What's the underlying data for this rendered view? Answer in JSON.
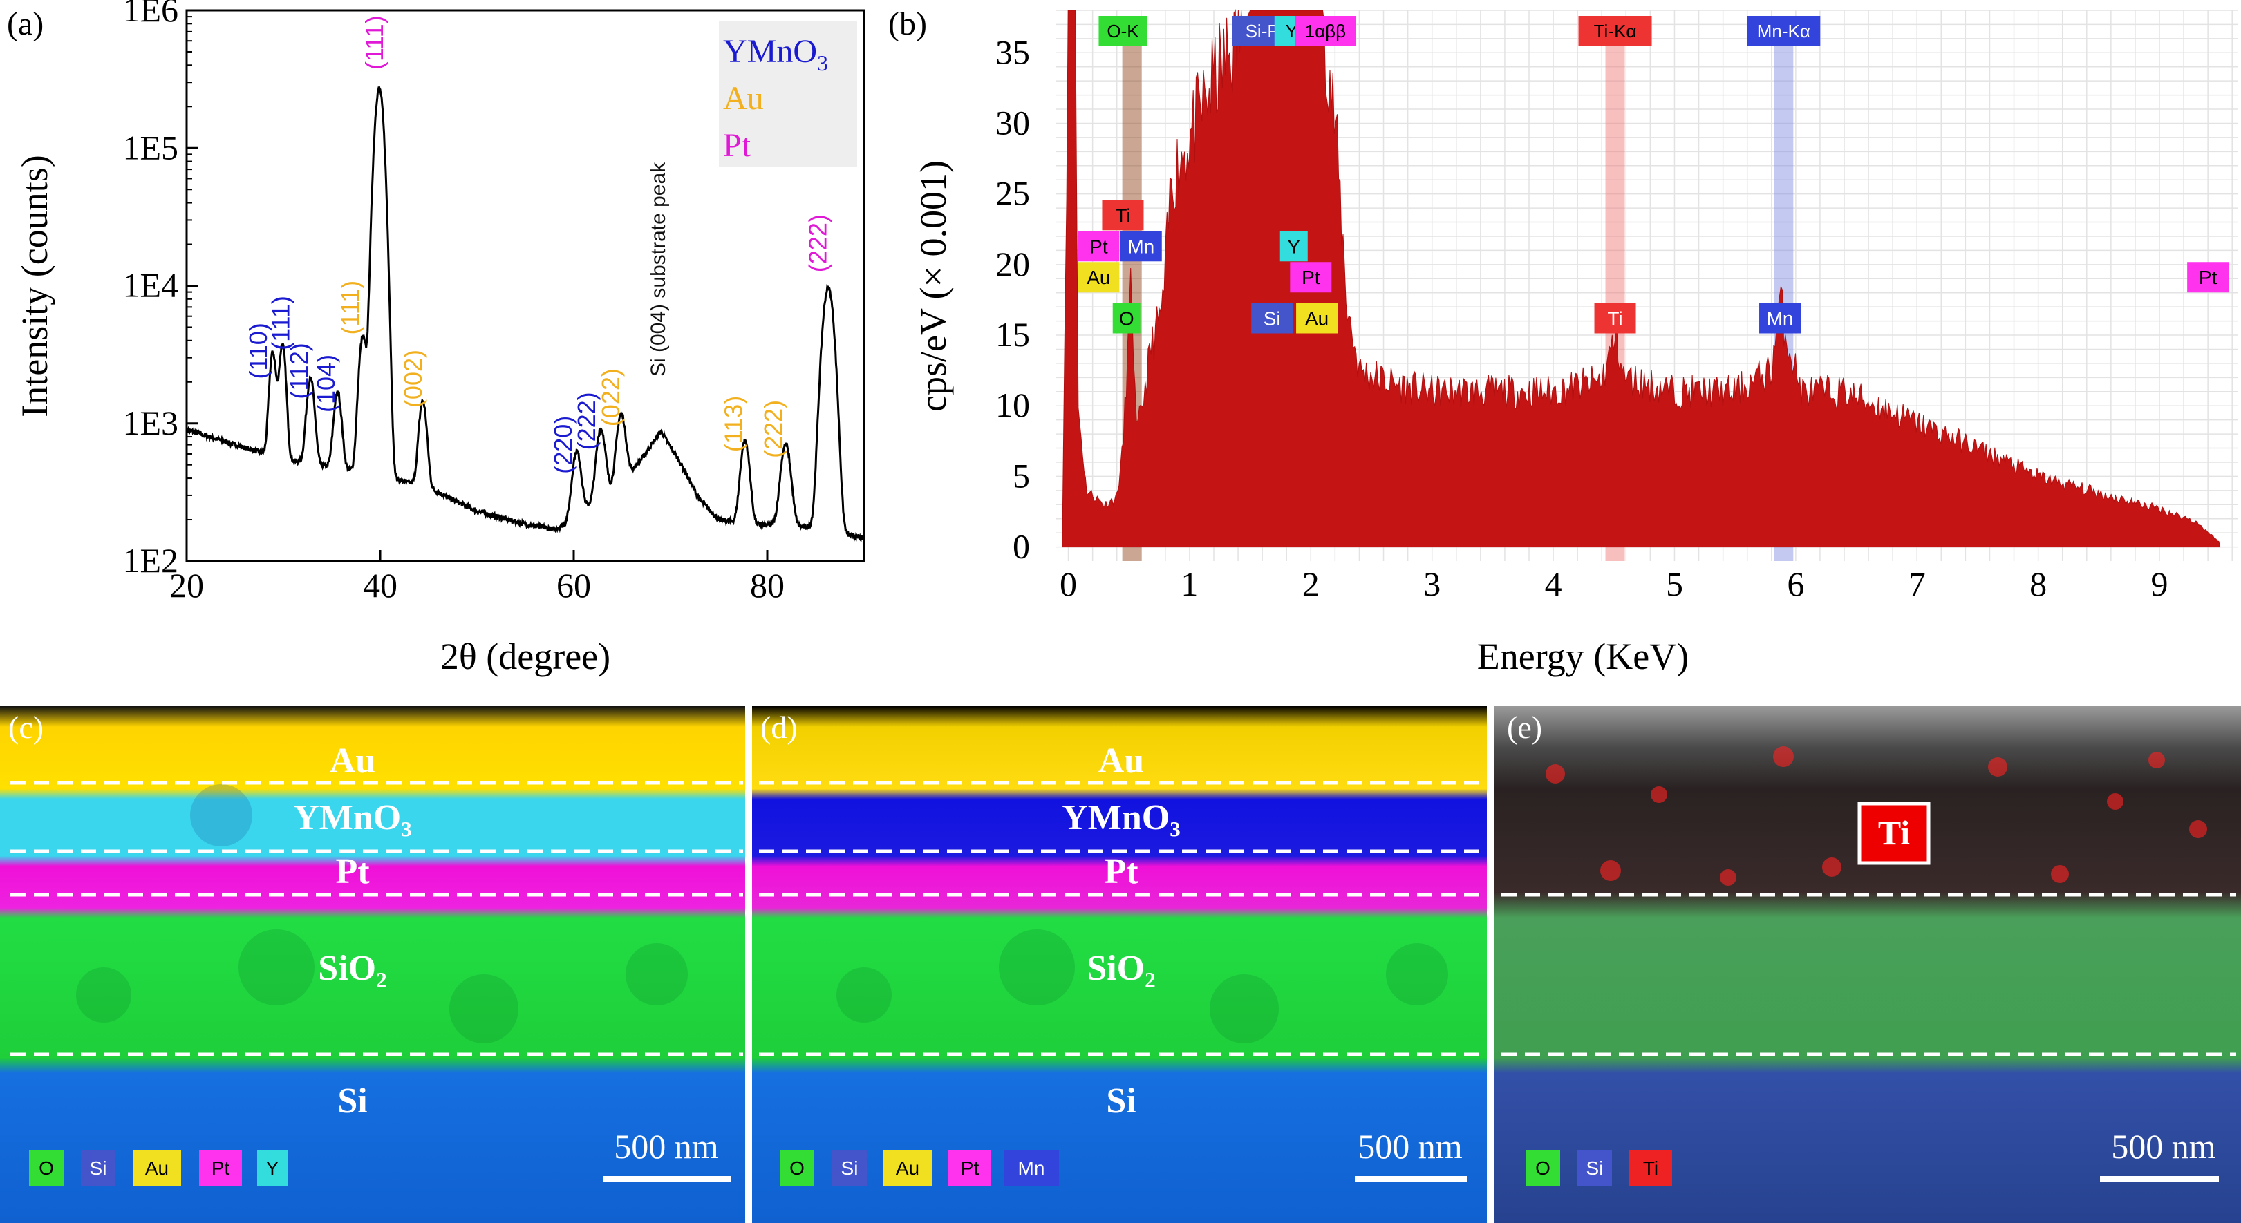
{
  "colors": {
    "blue": "#1a1ad0",
    "gold": "#f2b01e",
    "magenta": "#e019d6",
    "red": "#c01414",
    "eds_label_O": "#33dd33",
    "eds_label_Si": "#4455cc",
    "eds_label_Au": "#f0e020",
    "eds_label_Pt": "#ff33ee",
    "eds_label_Y": "#33dddd",
    "eds_label_Mn": "#3344dd",
    "eds_label_Ti": "#ee3333"
  },
  "panels": {
    "a": "(a)",
    "b": "(b)",
    "c": "(c)",
    "d": "(d)",
    "e": "(e)"
  },
  "chart_data": [
    {
      "id": "xrd",
      "type": "line",
      "xlabel": "2θ (degree)",
      "ylabel": "Intensity (counts)",
      "xlim": [
        20,
        90
      ],
      "xticks": [
        20,
        40,
        60,
        80
      ],
      "yscale": "log",
      "ylim": [
        100,
        1000000
      ],
      "yticks": [
        {
          "value": 100,
          "label": "1E2"
        },
        {
          "value": 1000,
          "label": "1E3"
        },
        {
          "value": 10000,
          "label": "1E4"
        },
        {
          "value": 100000,
          "label": "1E5"
        },
        {
          "value": 1000000,
          "label": "1E6"
        }
      ],
      "legend": [
        {
          "label": "YMnO",
          "sub": "3",
          "color": "#1a1ad0"
        },
        {
          "label": "Au",
          "sub": "",
          "color": "#f2b01e"
        },
        {
          "label": "Pt",
          "sub": "",
          "color": "#e019d6"
        }
      ],
      "annotation": "Si (004) substrate peak",
      "baseline": [
        [
          20,
          900
        ],
        [
          25,
          700
        ],
        [
          30,
          550
        ],
        [
          35,
          480
        ],
        [
          40,
          420
        ],
        [
          45,
          340
        ],
        [
          50,
          230
        ],
        [
          55,
          185
        ],
        [
          58,
          170
        ],
        [
          60,
          200
        ],
        [
          62,
          270
        ],
        [
          65,
          380
        ],
        [
          67,
          550
        ],
        [
          69,
          880
        ],
        [
          71,
          520
        ],
        [
          73,
          280
        ],
        [
          75,
          200
        ],
        [
          78,
          185
        ],
        [
          82,
          180
        ],
        [
          85,
          175
        ],
        [
          90,
          145
        ]
      ],
      "peaks": [
        {
          "x": 28.9,
          "y": 2700,
          "w": 0.3
        },
        {
          "x": 29.9,
          "y": 3200,
          "w": 0.3
        },
        {
          "x": 32.8,
          "y": 1600,
          "w": 0.35
        },
        {
          "x": 35.6,
          "y": 1200,
          "w": 0.35
        },
        {
          "x": 38.2,
          "y": 3800,
          "w": 0.35
        },
        {
          "x": 39.9,
          "y": 270000,
          "w": 0.4
        },
        {
          "x": 44.4,
          "y": 1100,
          "w": 0.35
        },
        {
          "x": 60.3,
          "y": 420,
          "w": 0.4
        },
        {
          "x": 62.8,
          "y": 620,
          "w": 0.4
        },
        {
          "x": 64.9,
          "y": 800,
          "w": 0.4
        },
        {
          "x": 77.7,
          "y": 560,
          "w": 0.4
        },
        {
          "x": 81.9,
          "y": 520,
          "w": 0.45
        },
        {
          "x": 86.3,
          "y": 9500,
          "w": 0.5
        }
      ],
      "peak_labels": [
        {
          "text": "(110)",
          "x": 28.3,
          "y": 2100,
          "color": "#1a1ad0"
        },
        {
          "text": "(111)",
          "x": 30.6,
          "y": 3400,
          "color": "#1a1ad0"
        },
        {
          "text": "(112)",
          "x": 32.5,
          "y": 1500,
          "color": "#1a1ad0"
        },
        {
          "text": "(104)",
          "x": 35.3,
          "y": 1200,
          "color": "#1a1ad0"
        },
        {
          "text": "(111)",
          "x": 37.8,
          "y": 4400,
          "color": "#f2b01e"
        },
        {
          "text": "(111)",
          "x": 40.3,
          "y": 370000,
          "color": "#e019d6"
        },
        {
          "text": "(002)",
          "x": 44.3,
          "y": 1300,
          "color": "#f2b01e"
        },
        {
          "text": "(220)",
          "x": 59.8,
          "y": 430,
          "color": "#1a1ad0"
        },
        {
          "text": "(222)",
          "x": 62.2,
          "y": 640,
          "color": "#1a1ad0"
        },
        {
          "text": "(022)",
          "x": 64.7,
          "y": 950,
          "color": "#f2b01e"
        },
        {
          "text": "(113)",
          "x": 77.4,
          "y": 620,
          "color": "#f2b01e"
        },
        {
          "text": "(222)",
          "x": 81.5,
          "y": 560,
          "color": "#f2b01e"
        },
        {
          "text": "(222)",
          "x": 86.1,
          "y": 12500,
          "color": "#e019d6"
        }
      ]
    },
    {
      "id": "eds",
      "type": "bar",
      "xlabel": "Energy (KeV)",
      "ylabel": "cps/eV (× 0.001)",
      "xlim": [
        -0.1,
        9.65
      ],
      "ylim": [
        -1,
        38
      ],
      "xticks": [
        0,
        1,
        2,
        3,
        4,
        5,
        6,
        7,
        8,
        9
      ],
      "yticks": [
        0,
        5,
        10,
        15,
        20,
        25,
        30,
        35
      ],
      "grid": true,
      "spectrum": [
        [
          -0.05,
          0
        ],
        [
          0,
          38
        ],
        [
          0.06,
          38
        ],
        [
          0.08,
          10
        ],
        [
          0.15,
          4
        ],
        [
          0.3,
          3
        ],
        [
          0.4,
          3.5
        ],
        [
          0.45,
          7
        ],
        [
          0.52,
          19
        ],
        [
          0.56,
          8
        ],
        [
          0.6,
          9.5
        ],
        [
          0.68,
          14
        ],
        [
          0.78,
          17
        ],
        [
          0.85,
          26
        ],
        [
          0.95,
          28
        ],
        [
          1.05,
          30
        ],
        [
          1.2,
          33
        ],
        [
          1.4,
          36
        ],
        [
          1.5,
          38
        ],
        [
          2.1,
          38
        ],
        [
          2.2,
          30
        ],
        [
          2.3,
          17
        ],
        [
          2.4,
          12.5
        ],
        [
          2.7,
          11.5
        ],
        [
          3,
          11
        ],
        [
          3.5,
          11
        ],
        [
          4,
          11
        ],
        [
          4.4,
          11.8
        ],
        [
          4.48,
          14
        ],
        [
          4.52,
          15
        ],
        [
          4.58,
          12
        ],
        [
          5,
          11
        ],
        [
          5.5,
          11
        ],
        [
          5.8,
          12.5
        ],
        [
          5.87,
          17.5
        ],
        [
          5.92,
          15
        ],
        [
          6.05,
          11
        ],
        [
          6.4,
          11
        ],
        [
          7,
          8.8
        ],
        [
          7.5,
          7
        ],
        [
          8,
          5
        ],
        [
          8.5,
          3.8
        ],
        [
          9,
          2.7
        ],
        [
          9.3,
          1.8
        ],
        [
          9.5,
          0.3
        ]
      ],
      "lines": [
        {
          "x": 0.525,
          "color": "#8a3a10",
          "label": "O-K"
        },
        {
          "x": 4.51,
          "color": "#f07070",
          "label": "Ti-Kα"
        },
        {
          "x": 5.9,
          "color": "#7a88e0",
          "label": "Mn-Kα"
        }
      ],
      "peak_markers": [
        {
          "text": "Ti",
          "x": 0.45,
          "row": 0,
          "color": "#ee3333",
          "fg": "#000000"
        },
        {
          "text": "Pt",
          "x": 0.25,
          "row": 1,
          "color": "#ff33ee",
          "fg": "#000000"
        },
        {
          "text": "Mn",
          "x": 0.6,
          "row": 1,
          "color": "#3344dd",
          "fg": "#ffffff"
        },
        {
          "text": "Au",
          "x": 0.25,
          "row": 2,
          "color": "#f0e020",
          "fg": "#000000"
        },
        {
          "text": "O",
          "x": 0.48,
          "row": 3,
          "color": "#33dd33",
          "fg": "#000000"
        },
        {
          "text": "Y",
          "x": 1.86,
          "row": 1,
          "color": "#33dddd",
          "fg": "#000000"
        },
        {
          "text": "Pt",
          "x": 2.0,
          "row": 2,
          "color": "#ff33ee",
          "fg": "#000000"
        },
        {
          "text": "Si",
          "x": 1.68,
          "row": 3,
          "color": "#4455cc",
          "fg": "#ffffff"
        },
        {
          "text": "Au",
          "x": 2.05,
          "row": 3,
          "color": "#f0e020",
          "fg": "#000000"
        },
        {
          "text": "Ti",
          "x": 4.51,
          "row": 3,
          "color": "#ee3333",
          "fg": "#ffffff"
        },
        {
          "text": "Mn",
          "x": 5.87,
          "row": 3,
          "color": "#3344dd",
          "fg": "#ffffff"
        },
        {
          "text": "Pt",
          "x": 9.4,
          "row": 2,
          "color": "#ff33ee",
          "fg": "#000000"
        }
      ],
      "top_tags": [
        {
          "text": "O-K",
          "x": 0.45,
          "color": "#33dd33",
          "fg": "#000000"
        },
        {
          "text": "Si-P",
          "x": 1.6,
          "color": "#4455cc",
          "fg": "#ffffff"
        },
        {
          "text": "Y-L",
          "x": 1.9,
          "color": "#33dddd",
          "fg": "#000000"
        },
        {
          "text": "1αββ",
          "x": 2.12,
          "color": "#ff33ee",
          "fg": "#000000"
        },
        {
          "text": "Ti-Kα",
          "x": 4.51,
          "color": "#ee3333",
          "fg": "#000000"
        },
        {
          "text": "Mn-Kα",
          "x": 5.9,
          "color": "#3344dd",
          "fg": "#ffffff"
        }
      ]
    }
  ],
  "maps": [
    {
      "id": "c",
      "layers": [
        "Au",
        "YMnO₃",
        "Pt",
        "SiO₂",
        "Si"
      ],
      "scale": "500 nm",
      "legend": [
        "O",
        "Si",
        "Au",
        "Pt",
        "Y"
      ]
    },
    {
      "id": "d",
      "layers": [
        "Au",
        "YMnO₃",
        "Pt",
        "SiO₂",
        "Si"
      ],
      "scale": "500 nm",
      "legend": [
        "O",
        "Si",
        "Au",
        "Pt",
        "Mn"
      ]
    },
    {
      "id": "e",
      "layers": [
        "Ti"
      ],
      "scale": "500 nm",
      "legend": [
        "O",
        "Si",
        "Ti"
      ]
    }
  ]
}
